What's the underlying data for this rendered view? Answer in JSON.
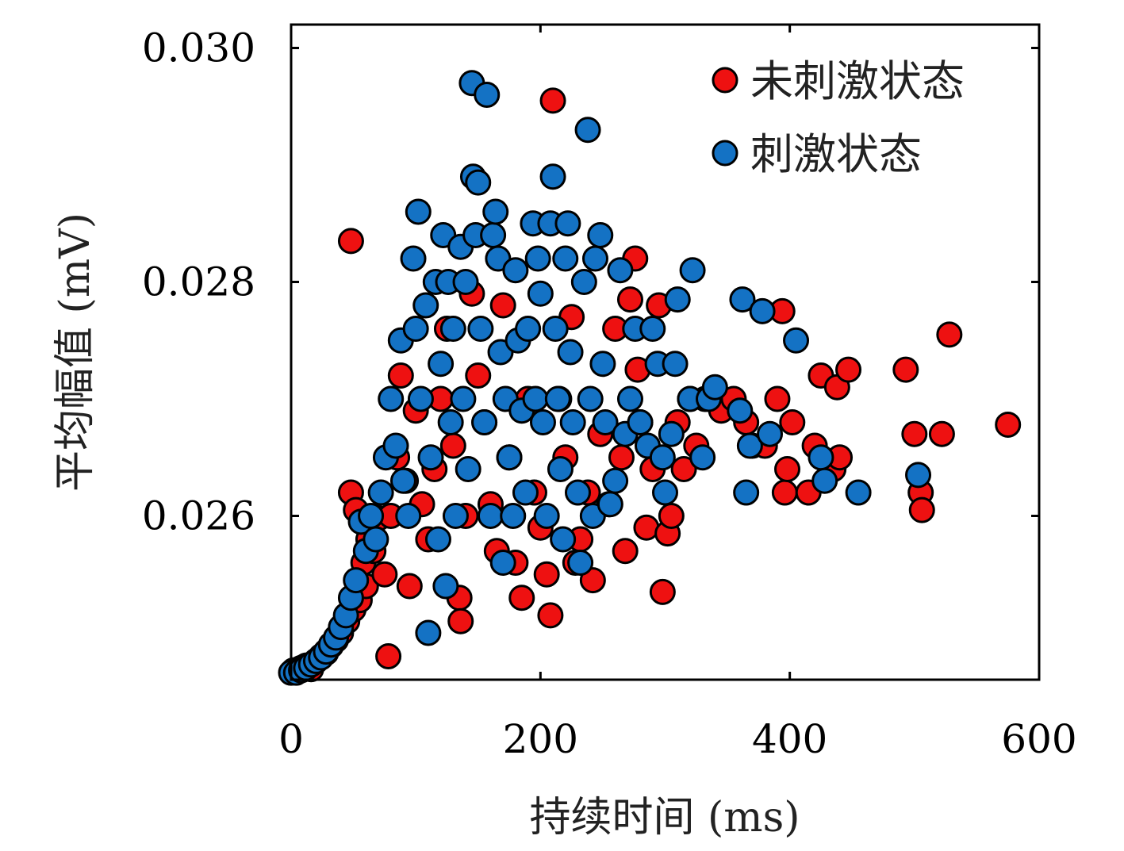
{
  "chart_data": {
    "type": "scatter",
    "xlabel": "持续时间 (ms)",
    "ylabel": "平均幅值 (mV)",
    "xlim": [
      0,
      600
    ],
    "ylim": [
      0.0246,
      0.0302
    ],
    "xticks": [
      0,
      200,
      400,
      600
    ],
    "xtick_labels": [
      "0",
      "200",
      "400",
      "600"
    ],
    "yticks": [
      0.026,
      0.028,
      0.03
    ],
    "ytick_labels": [
      "0.026",
      "0.028",
      "0.030"
    ],
    "grid": false,
    "legend_position": "top-right",
    "series": [
      {
        "name": "未刺激状态",
        "color": "#ee1111",
        "points": [
          [
            2,
            0.02468
          ],
          [
            5,
            0.02467
          ],
          [
            8,
            0.0247
          ],
          [
            12,
            0.02472
          ],
          [
            16,
            0.02469
          ],
          [
            20,
            0.02476
          ],
          [
            24,
            0.0248
          ],
          [
            28,
            0.02483
          ],
          [
            32,
            0.02489
          ],
          [
            36,
            0.02494
          ],
          [
            40,
            0.025
          ],
          [
            45,
            0.0251
          ],
          [
            50,
            0.0252
          ],
          [
            55,
            0.02528
          ],
          [
            60,
            0.0254
          ],
          [
            48,
            0.0262
          ],
          [
            52,
            0.02605
          ],
          [
            58,
            0.0256
          ],
          [
            62,
            0.0258
          ],
          [
            66,
            0.0257
          ],
          [
            70,
            0.02598
          ],
          [
            75,
            0.0255
          ],
          [
            78,
            0.0248
          ],
          [
            80,
            0.026
          ],
          [
            85,
            0.0265
          ],
          [
            88,
            0.0272
          ],
          [
            92,
            0.0263
          ],
          [
            95,
            0.0254
          ],
          [
            100,
            0.0269
          ],
          [
            105,
            0.0261
          ],
          [
            110,
            0.0258
          ],
          [
            115,
            0.0264
          ],
          [
            120,
            0.027
          ],
          [
            125,
            0.0276
          ],
          [
            130,
            0.0266
          ],
          [
            135,
            0.0253
          ],
          [
            136,
            0.0251
          ],
          [
            140,
            0.026
          ],
          [
            145,
            0.0279
          ],
          [
            150,
            0.0272
          ],
          [
            155,
            0.0268
          ],
          [
            160,
            0.0261
          ],
          [
            165,
            0.0257
          ],
          [
            170,
            0.0278
          ],
          [
            175,
            0.0265
          ],
          [
            180,
            0.0256
          ],
          [
            185,
            0.0253
          ],
          [
            190,
            0.027
          ],
          [
            195,
            0.0262
          ],
          [
            200,
            0.0259
          ],
          [
            205,
            0.0255
          ],
          [
            208,
            0.02515
          ],
          [
            210,
            0.02955
          ],
          [
            215,
            0.027
          ],
          [
            220,
            0.0265
          ],
          [
            225,
            0.0277
          ],
          [
            228,
            0.0256
          ],
          [
            232,
            0.0258
          ],
          [
            238,
            0.0262
          ],
          [
            242,
            0.02545
          ],
          [
            248,
            0.0267
          ],
          [
            255,
            0.0261
          ],
          [
            260,
            0.0276
          ],
          [
            265,
            0.0265
          ],
          [
            268,
            0.0257
          ],
          [
            272,
            0.02785
          ],
          [
            276,
            0.0282
          ],
          [
            278,
            0.02725
          ],
          [
            280,
            0.0268
          ],
          [
            285,
            0.0259
          ],
          [
            290,
            0.0264
          ],
          [
            295,
            0.0278
          ],
          [
            298,
            0.02535
          ],
          [
            302,
            0.02585
          ],
          [
            305,
            0.026
          ],
          [
            310,
            0.0268
          ],
          [
            315,
            0.0264
          ],
          [
            320,
            0.027
          ],
          [
            325,
            0.0266
          ],
          [
            332,
            0.027
          ],
          [
            345,
            0.0269
          ],
          [
            355,
            0.027
          ],
          [
            365,
            0.0268
          ],
          [
            370,
            0.0266
          ],
          [
            380,
            0.0266
          ],
          [
            390,
            0.027
          ],
          [
            394,
            0.02775
          ],
          [
            396,
            0.0262
          ],
          [
            398,
            0.0264
          ],
          [
            402,
            0.0268
          ],
          [
            415,
            0.0262
          ],
          [
            420,
            0.0266
          ],
          [
            425,
            0.0272
          ],
          [
            435,
            0.0264
          ],
          [
            438,
            0.0271
          ],
          [
            440,
            0.0265
          ],
          [
            447,
            0.02725
          ],
          [
            493,
            0.02725
          ],
          [
            500,
            0.0267
          ],
          [
            505,
            0.0262
          ],
          [
            506,
            0.02605
          ],
          [
            522,
            0.0267
          ],
          [
            528,
            0.02755
          ],
          [
            575,
            0.02678
          ],
          [
            48,
            0.02835
          ]
        ]
      },
      {
        "name": "刺激状态",
        "color": "#1472c4",
        "points": [
          [
            0,
            0.02466
          ],
          [
            4,
            0.02466
          ],
          [
            8,
            0.02468
          ],
          [
            12,
            0.0247
          ],
          [
            16,
            0.02473
          ],
          [
            20,
            0.02476
          ],
          [
            24,
            0.02479
          ],
          [
            28,
            0.02484
          ],
          [
            32,
            0.0249
          ],
          [
            36,
            0.02496
          ],
          [
            40,
            0.02505
          ],
          [
            44,
            0.02515
          ],
          [
            48,
            0.0253
          ],
          [
            52,
            0.02545
          ],
          [
            56,
            0.02595
          ],
          [
            60,
            0.0257
          ],
          [
            64,
            0.026
          ],
          [
            68,
            0.0258
          ],
          [
            72,
            0.0262
          ],
          [
            76,
            0.0265
          ],
          [
            80,
            0.027
          ],
          [
            84,
            0.0266
          ],
          [
            88,
            0.0275
          ],
          [
            90,
            0.0263
          ],
          [
            94,
            0.026
          ],
          [
            98,
            0.0282
          ],
          [
            100,
            0.0276
          ],
          [
            102,
            0.0286
          ],
          [
            104,
            0.027
          ],
          [
            108,
            0.0278
          ],
          [
            110,
            0.025
          ],
          [
            112,
            0.0265
          ],
          [
            116,
            0.028
          ],
          [
            118,
            0.0258
          ],
          [
            120,
            0.0273
          ],
          [
            122,
            0.0284
          ],
          [
            124,
            0.0254
          ],
          [
            126,
            0.028
          ],
          [
            128,
            0.0268
          ],
          [
            130,
            0.0276
          ],
          [
            132,
            0.026
          ],
          [
            136,
            0.0283
          ],
          [
            138,
            0.027
          ],
          [
            140,
            0.028
          ],
          [
            142,
            0.0264
          ],
          [
            145,
            0.0297
          ],
          [
            146,
            0.0289
          ],
          [
            148,
            0.0284
          ],
          [
            150,
            0.02885
          ],
          [
            152,
            0.0276
          ],
          [
            155,
            0.0268
          ],
          [
            157,
            0.0296
          ],
          [
            160,
            0.026
          ],
          [
            162,
            0.0284
          ],
          [
            164,
            0.0286
          ],
          [
            166,
            0.0282
          ],
          [
            168,
            0.0274
          ],
          [
            170,
            0.0256
          ],
          [
            172,
            0.027
          ],
          [
            175,
            0.0265
          ],
          [
            178,
            0.026
          ],
          [
            180,
            0.0281
          ],
          [
            182,
            0.0275
          ],
          [
            185,
            0.0269
          ],
          [
            188,
            0.0262
          ],
          [
            190,
            0.0276
          ],
          [
            194,
            0.0285
          ],
          [
            196,
            0.027
          ],
          [
            198,
            0.0282
          ],
          [
            200,
            0.0279
          ],
          [
            202,
            0.0268
          ],
          [
            205,
            0.026
          ],
          [
            208,
            0.0285
          ],
          [
            210,
            0.0289
          ],
          [
            212,
            0.0276
          ],
          [
            214,
            0.027
          ],
          [
            216,
            0.0264
          ],
          [
            218,
            0.0258
          ],
          [
            220,
            0.0282
          ],
          [
            222,
            0.0285
          ],
          [
            224,
            0.0274
          ],
          [
            226,
            0.0268
          ],
          [
            230,
            0.0262
          ],
          [
            232,
            0.0256
          ],
          [
            235,
            0.028
          ],
          [
            238,
            0.0293
          ],
          [
            240,
            0.027
          ],
          [
            242,
            0.026
          ],
          [
            244,
            0.0282
          ],
          [
            248,
            0.0284
          ],
          [
            250,
            0.0273
          ],
          [
            252,
            0.0268
          ],
          [
            256,
            0.0261
          ],
          [
            260,
            0.0263
          ],
          [
            264,
            0.0281
          ],
          [
            268,
            0.0267
          ],
          [
            272,
            0.027
          ],
          [
            276,
            0.0276
          ],
          [
            280,
            0.0268
          ],
          [
            286,
            0.0266
          ],
          [
            290,
            0.0276
          ],
          [
            294,
            0.0273
          ],
          [
            298,
            0.0265
          ],
          [
            300,
            0.0262
          ],
          [
            305,
            0.0267
          ],
          [
            308,
            0.0273
          ],
          [
            310,
            0.02785
          ],
          [
            320,
            0.027
          ],
          [
            322,
            0.0281
          ],
          [
            330,
            0.0265
          ],
          [
            335,
            0.027
          ],
          [
            340,
            0.0271
          ],
          [
            360,
            0.0269
          ],
          [
            362,
            0.02785
          ],
          [
            365,
            0.0262
          ],
          [
            368,
            0.0266
          ],
          [
            378,
            0.02775
          ],
          [
            384,
            0.0267
          ],
          [
            405,
            0.0275
          ],
          [
            425,
            0.0265
          ],
          [
            428,
            0.0263
          ],
          [
            455,
            0.0262
          ],
          [
            503,
            0.02635
          ]
        ]
      }
    ]
  }
}
